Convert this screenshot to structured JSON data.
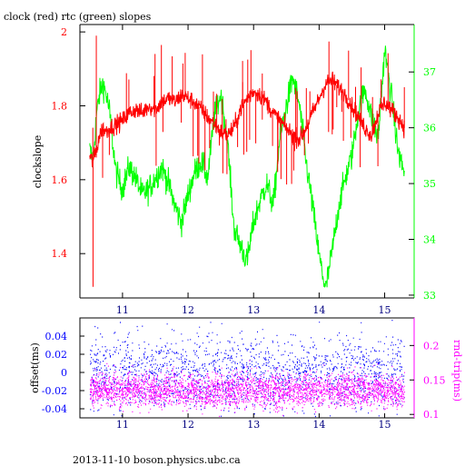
{
  "title": "clock (red) rtc (green) slopes",
  "footer": "2013-11-10  boson.physics.ubc.ca",
  "colors": {
    "clock": "#ff0000",
    "rtc": "#00ff00",
    "offset": "#0000ff",
    "rndtrip": "#ff00ff",
    "axis": "#000000"
  },
  "chart_data": [
    {
      "type": "line",
      "title": "clock (red) rtc (green) slopes",
      "xlabel": "",
      "x_ticks": [
        "11",
        "12",
        "13",
        "14",
        "15"
      ],
      "xlim": [
        10.35,
        15.45
      ],
      "left_axis": {
        "label": "clockslope",
        "ylim": [
          1.28,
          2.02
        ],
        "ticks": [
          "2",
          "1.8",
          "1.6",
          "1.4"
        ],
        "color": "#ff0000"
      },
      "right_axis": {
        "label": "",
        "ylim": [
          32.95,
          37.85
        ],
        "ticks": [
          "37",
          "36",
          "35",
          "34",
          "33"
        ],
        "color": "#00ff00"
      },
      "series": [
        {
          "axis": "left",
          "color": "#ff0000",
          "x": [
            10.5,
            10.55,
            10.6,
            10.65,
            10.7,
            10.75,
            10.8,
            10.9,
            11.0,
            11.1,
            11.2,
            11.3,
            11.4,
            11.5,
            11.6,
            11.7,
            11.8,
            11.9,
            12.0,
            12.1,
            12.2,
            12.3,
            12.4,
            12.5,
            12.6,
            12.7,
            12.8,
            12.9,
            13.0,
            13.1,
            13.2,
            13.3,
            13.4,
            13.5,
            13.6,
            13.7,
            13.8,
            13.9,
            14.0,
            14.1,
            14.2,
            14.3,
            14.4,
            14.5,
            14.6,
            14.7,
            14.8,
            14.9,
            15.0,
            15.1,
            15.2,
            15.3
          ],
          "values": [
            1.66,
            1.65,
            1.68,
            1.72,
            1.74,
            1.73,
            1.74,
            1.75,
            1.76,
            1.78,
            1.79,
            1.78,
            1.8,
            1.79,
            1.81,
            1.82,
            1.81,
            1.83,
            1.82,
            1.81,
            1.79,
            1.77,
            1.75,
            1.73,
            1.72,
            1.74,
            1.79,
            1.82,
            1.84,
            1.83,
            1.81,
            1.78,
            1.76,
            1.74,
            1.72,
            1.71,
            1.74,
            1.78,
            1.82,
            1.86,
            1.87,
            1.85,
            1.83,
            1.8,
            1.77,
            1.74,
            1.72,
            1.78,
            1.81,
            1.79,
            1.77,
            1.74
          ]
        },
        {
          "axis": "right",
          "color": "#00ff00",
          "x": [
            10.5,
            10.55,
            10.6,
            10.65,
            10.7,
            10.75,
            10.8,
            10.9,
            11.0,
            11.1,
            11.2,
            11.3,
            11.4,
            11.5,
            11.6,
            11.7,
            11.8,
            11.9,
            12.0,
            12.1,
            12.2,
            12.3,
            12.4,
            12.5,
            12.6,
            12.7,
            12.8,
            12.9,
            13.0,
            13.1,
            13.2,
            13.3,
            13.4,
            13.5,
            13.6,
            13.7,
            13.8,
            13.9,
            14.0,
            14.1,
            14.2,
            14.3,
            14.4,
            14.5,
            14.6,
            14.7,
            14.8,
            14.9,
            15.0,
            15.1,
            15.2,
            15.3
          ],
          "values": [
            35.6,
            35.4,
            36.2,
            36.6,
            36.8,
            36.6,
            36.3,
            35.2,
            34.9,
            35.3,
            35.1,
            34.8,
            34.9,
            35.1,
            35.3,
            35.0,
            34.6,
            34.3,
            34.8,
            35.2,
            35.4,
            35.1,
            36.2,
            36.6,
            35.8,
            34.2,
            33.9,
            33.6,
            34.3,
            34.7,
            35.0,
            34.6,
            35.8,
            36.4,
            36.9,
            36.4,
            35.4,
            34.6,
            33.7,
            33.1,
            33.8,
            34.6,
            35.1,
            35.5,
            36.3,
            36.7,
            36.2,
            35.8,
            37.4,
            36.6,
            35.6,
            35.2
          ]
        }
      ]
    },
    {
      "type": "scatter",
      "title": "",
      "x_ticks": [
        "11",
        "12",
        "13",
        "14",
        "15"
      ],
      "xlim": [
        10.35,
        15.45
      ],
      "left_axis": {
        "label": "offset(ms)",
        "ylim": [
          -0.05,
          0.06
        ],
        "ticks": [
          "0.04",
          "0.02",
          "0",
          "-0.02",
          "-0.04"
        ],
        "color": "#0000ff"
      },
      "right_axis": {
        "label": "rnd-trip(ms)",
        "ylim": [
          0.095,
          0.24
        ],
        "ticks": [
          "0.2",
          "0.15",
          "0.1"
        ],
        "color": "#ff00ff"
      },
      "series": [
        {
          "name": "offset",
          "axis": "left",
          "color": "#0000ff",
          "x_range": [
            10.5,
            15.3
          ],
          "center": 0.0,
          "spread": 0.02
        },
        {
          "name": "rnd-trip",
          "axis": "right",
          "color": "#ff00ff",
          "x_range": [
            10.5,
            15.3
          ],
          "center": 0.135,
          "spread": 0.012
        }
      ]
    }
  ]
}
